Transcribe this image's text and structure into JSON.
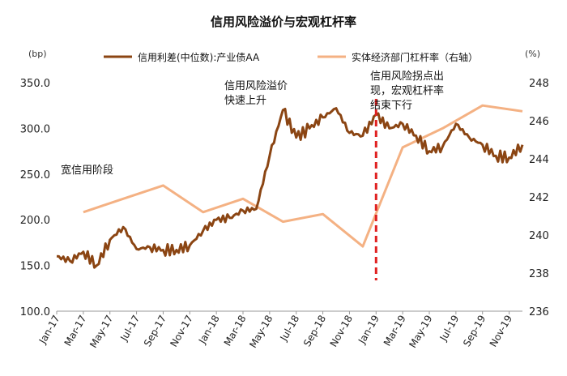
{
  "chart_data": {
    "type": "line",
    "title": "信用风险溢价与宏观杠杆率",
    "left_unit": "(bp)",
    "right_unit": "(%)",
    "ylim_left": [
      100,
      350
    ],
    "ylim_right": [
      236,
      248
    ],
    "left_ticks": [
      "100.0",
      "150.0",
      "200.0",
      "250.0",
      "300.0",
      "350.0"
    ],
    "left_tick_values": [
      100,
      150,
      200,
      250,
      300,
      350
    ],
    "right_ticks": [
      "236",
      "238",
      "240",
      "242",
      "244",
      "246",
      "248"
    ],
    "right_tick_values": [
      236,
      238,
      240,
      242,
      244,
      246,
      248
    ],
    "x_ticks": [
      "Jan-17",
      "Mar-17",
      "May-17",
      "Jul-17",
      "Sep-17",
      "Nov-17",
      "Jan-18",
      "Mar-18",
      "May-18",
      "Jul-18",
      "Sep-18",
      "Nov-18",
      "Jan-19",
      "Mar-19",
      "May-19",
      "Jul-19",
      "Sep-19",
      "Nov-19"
    ],
    "legend_placement": "top",
    "grid": false,
    "series": [
      {
        "name": "信用利差(中位数):产业债AA",
        "axis": "left",
        "color": "#8B4513",
        "x": [
          "2017-01",
          "2017-02",
          "2017-03",
          "2017-04",
          "2017-05",
          "2017-06",
          "2017-07",
          "2017-08",
          "2017-09",
          "2017-10",
          "2017-11",
          "2017-12",
          "2018-01",
          "2018-02",
          "2018-03",
          "2018-04",
          "2018-05",
          "2018-06",
          "2018-07",
          "2018-08",
          "2018-09",
          "2018-10",
          "2018-11",
          "2018-12",
          "2019-01",
          "2019-02",
          "2019-03",
          "2019-04",
          "2019-05",
          "2019-06",
          "2019-07",
          "2019-08",
          "2019-09",
          "2019-10",
          "2019-11",
          "2019-12"
        ],
        "values": [
          160,
          155,
          165,
          150,
          178,
          192,
          168,
          170,
          167,
          167,
          172,
          188,
          200,
          202,
          210,
          212,
          270,
          320,
          290,
          300,
          312,
          322,
          295,
          292,
          315,
          300,
          305,
          292,
          275,
          280,
          305,
          290,
          282,
          270,
          268,
          282
        ]
      },
      {
        "name": "实体经济部门杠杆率（右轴）",
        "axis": "right",
        "color": "#F4B183",
        "x": [
          "2017-03",
          "2017-06",
          "2017-09",
          "2017-12",
          "2018-03",
          "2018-06",
          "2018-09",
          "2018-12",
          "2019-03",
          "2019-06",
          "2019-09",
          "2019-12"
        ],
        "values": [
          241.2,
          241.9,
          242.6,
          241.2,
          241.9,
          240.7,
          241.1,
          239.4,
          244.6,
          245.6,
          246.8,
          246.5
        ]
      }
    ],
    "annotations": [
      {
        "text": "宽信用阶段"
      },
      {
        "text": "信用风险溢价快速上升"
      },
      {
        "text": "信用风险拐点出现，宏观杠杆率结束下行"
      }
    ],
    "marker_line": {
      "x": "2019-01",
      "color": "#E02020"
    }
  }
}
